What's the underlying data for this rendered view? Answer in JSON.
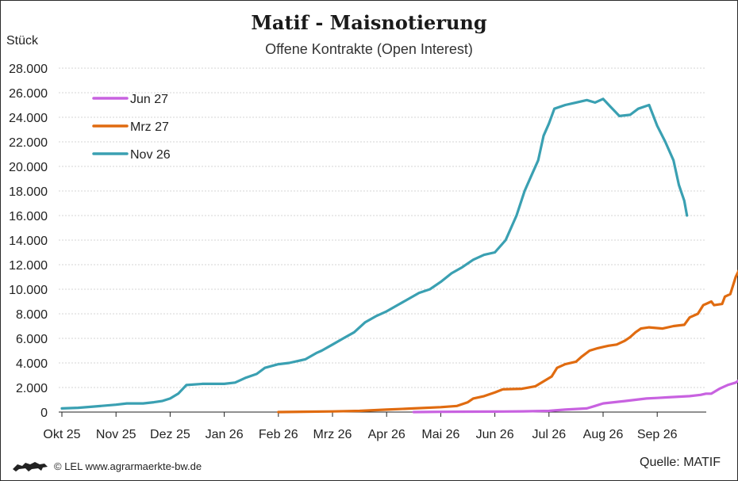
{
  "title": "Matif - Maisnotierung",
  "subtitle": "Offene Kontrakte (Open Interest)",
  "unit": "Stück",
  "footer": {
    "copyright": "© LEL www.agrarmaerkte-bw.de",
    "source": "Quelle: MATIF"
  },
  "chart_data": {
    "type": "line",
    "title": "Matif - Maisnotierung",
    "subtitle": "Offene Kontrakte (Open Interest)",
    "ylabel": "Stück",
    "ylim": [
      0,
      28000
    ],
    "yticks": [
      0,
      2000,
      4000,
      6000,
      8000,
      10000,
      12000,
      14000,
      16000,
      18000,
      20000,
      22000,
      24000,
      26000,
      28000
    ],
    "ytick_labels": [
      "0",
      "2.000",
      "4.000",
      "6.000",
      "8.000",
      "10.000",
      "12.000",
      "14.000",
      "16.000",
      "18.000",
      "20.000",
      "22.000",
      "24.000",
      "26.000",
      "28.000"
    ],
    "x_tick_labels": [
      "Okt 25",
      "Nov 25",
      "Dez 25",
      "Jan 26",
      "Feb 26",
      "Mrz 26",
      "Apr 26",
      "Mai 26",
      "Jun 26",
      "Jul 26",
      "Aug 26",
      "Sep 26"
    ],
    "grid": true,
    "legend_position": "top-left",
    "series": [
      {
        "name": "Jun 27",
        "color": "#c862e0",
        "points": [
          [
            6.5,
            0
          ],
          [
            7.0,
            20
          ],
          [
            7.5,
            30
          ],
          [
            8.0,
            40
          ],
          [
            8.5,
            60
          ],
          [
            9.0,
            100
          ],
          [
            9.3,
            200
          ],
          [
            9.5,
            250
          ],
          [
            9.7,
            300
          ],
          [
            9.85,
            500
          ],
          [
            10.0,
            700
          ],
          [
            10.2,
            800
          ],
          [
            10.4,
            900
          ],
          [
            10.6,
            1000
          ],
          [
            10.8,
            1100
          ],
          [
            11.0,
            1150
          ],
          [
            11.2,
            1200
          ],
          [
            11.4,
            1250
          ],
          [
            11.6,
            1300
          ],
          [
            11.8,
            1400
          ],
          [
            11.9,
            1500
          ],
          [
            12.0,
            1500
          ],
          [
            12.15,
            1900
          ],
          [
            12.3,
            2200
          ],
          [
            12.45,
            2400
          ],
          [
            12.55,
            2700
          ]
        ]
      },
      {
        "name": "Mrz 27",
        "color": "#e06b10",
        "points": [
          [
            4.0,
            0
          ],
          [
            5.0,
            50
          ],
          [
            5.5,
            100
          ],
          [
            6.0,
            200
          ],
          [
            6.5,
            300
          ],
          [
            7.0,
            400
          ],
          [
            7.3,
            500
          ],
          [
            7.5,
            800
          ],
          [
            7.6,
            1100
          ],
          [
            7.8,
            1300
          ],
          [
            8.0,
            1600
          ],
          [
            8.15,
            1850
          ],
          [
            8.5,
            1900
          ],
          [
            8.75,
            2100
          ],
          [
            8.9,
            2500
          ],
          [
            9.05,
            2900
          ],
          [
            9.15,
            3600
          ],
          [
            9.3,
            3900
          ],
          [
            9.5,
            4100
          ],
          [
            9.6,
            4500
          ],
          [
            9.75,
            5000
          ],
          [
            9.9,
            5200
          ],
          [
            10.1,
            5400
          ],
          [
            10.25,
            5500
          ],
          [
            10.4,
            5800
          ],
          [
            10.5,
            6100
          ],
          [
            10.6,
            6500
          ],
          [
            10.7,
            6800
          ],
          [
            10.85,
            6900
          ],
          [
            11.1,
            6800
          ],
          [
            11.3,
            7000
          ],
          [
            11.5,
            7100
          ],
          [
            11.6,
            7700
          ],
          [
            11.75,
            8000
          ],
          [
            11.85,
            8700
          ],
          [
            12.0,
            9000
          ],
          [
            12.05,
            8700
          ],
          [
            12.2,
            8800
          ],
          [
            12.25,
            9400
          ],
          [
            12.35,
            9600
          ],
          [
            12.45,
            11000
          ],
          [
            12.55,
            11900
          ]
        ]
      },
      {
        "name": "Nov 26",
        "color": "#3aa0b2",
        "points": [
          [
            0.0,
            300
          ],
          [
            0.3,
            350
          ],
          [
            0.6,
            450
          ],
          [
            1.0,
            600
          ],
          [
            1.2,
            700
          ],
          [
            1.5,
            700
          ],
          [
            1.7,
            800
          ],
          [
            1.85,
            900
          ],
          [
            2.0,
            1100
          ],
          [
            2.15,
            1500
          ],
          [
            2.3,
            2200
          ],
          [
            2.6,
            2300
          ],
          [
            2.8,
            2300
          ],
          [
            3.0,
            2300
          ],
          [
            3.2,
            2400
          ],
          [
            3.3,
            2600
          ],
          [
            3.4,
            2800
          ],
          [
            3.6,
            3100
          ],
          [
            3.75,
            3600
          ],
          [
            4.0,
            3900
          ],
          [
            4.2,
            4000
          ],
          [
            4.5,
            4300
          ],
          [
            4.7,
            4800
          ],
          [
            4.8,
            5000
          ],
          [
            5.0,
            5500
          ],
          [
            5.2,
            6000
          ],
          [
            5.4,
            6500
          ],
          [
            5.6,
            7300
          ],
          [
            5.8,
            7800
          ],
          [
            6.0,
            8200
          ],
          [
            6.2,
            8700
          ],
          [
            6.4,
            9200
          ],
          [
            6.6,
            9700
          ],
          [
            6.8,
            10000
          ],
          [
            7.0,
            10600
          ],
          [
            7.2,
            11300
          ],
          [
            7.4,
            11800
          ],
          [
            7.6,
            12400
          ],
          [
            7.8,
            12800
          ],
          [
            8.0,
            13000
          ],
          [
            8.2,
            14000
          ],
          [
            8.4,
            16000
          ],
          [
            8.55,
            18000
          ],
          [
            8.7,
            19500
          ],
          [
            8.8,
            20500
          ],
          [
            8.9,
            22500
          ],
          [
            9.0,
            23500
          ],
          [
            9.1,
            24700
          ],
          [
            9.3,
            25000
          ],
          [
            9.5,
            25200
          ],
          [
            9.7,
            25400
          ],
          [
            9.85,
            25200
          ],
          [
            10.0,
            25500
          ],
          [
            10.15,
            24800
          ],
          [
            10.3,
            24100
          ],
          [
            10.5,
            24200
          ],
          [
            10.65,
            24700
          ],
          [
            10.85,
            25000
          ],
          [
            11.0,
            23300
          ],
          [
            11.15,
            22000
          ],
          [
            11.3,
            20500
          ],
          [
            11.4,
            18500
          ],
          [
            11.5,
            17200
          ],
          [
            11.55,
            16000
          ]
        ]
      }
    ]
  }
}
